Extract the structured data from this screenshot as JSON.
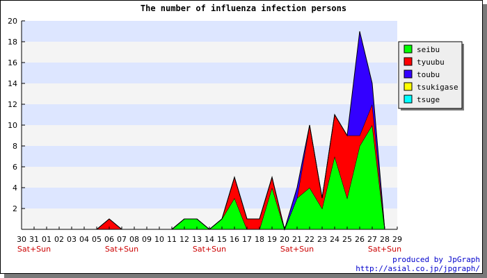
{
  "chart_data": {
    "type": "area",
    "stacked": true,
    "title": "The number of influenza infection persons",
    "xlabel": "",
    "ylabel": "",
    "ylim": [
      0,
      20
    ],
    "yticks": [
      2,
      4,
      6,
      8,
      10,
      12,
      14,
      16,
      18,
      20
    ],
    "grid": true,
    "legend_position": "right",
    "categories": [
      "30",
      "31",
      "01",
      "02",
      "03",
      "04",
      "05",
      "06",
      "07",
      "08",
      "09",
      "10",
      "11",
      "12",
      "13",
      "14",
      "15",
      "16",
      "17",
      "18",
      "19",
      "20",
      "21",
      "22",
      "23",
      "24",
      "25",
      "26",
      "27",
      "28",
      "29"
    ],
    "weekend_markers": [
      {
        "index": 1,
        "label": "Sat+Sun"
      },
      {
        "index": 8,
        "label": "Sat+Sun"
      },
      {
        "index": 15,
        "label": "Sat+Sun"
      },
      {
        "index": 22,
        "label": "Sat+Sun"
      },
      {
        "index": 29,
        "label": "Sat+Sun"
      }
    ],
    "series": [
      {
        "name": "seibu",
        "color": "#00ff00",
        "values": [
          0,
          0,
          0,
          0,
          0,
          0,
          0,
          0,
          0,
          0,
          0,
          0,
          0,
          1,
          1,
          0,
          1,
          3,
          0,
          0,
          4,
          0,
          3,
          4,
          2,
          7,
          3,
          8,
          10,
          0,
          0
        ]
      },
      {
        "name": "tyuubu",
        "color": "#ff0000",
        "values": [
          0,
          0,
          0,
          0,
          0,
          0,
          0,
          1,
          0,
          0,
          0,
          0,
          0,
          0,
          0,
          0,
          0,
          2,
          1,
          1,
          1,
          0,
          0,
          6,
          1,
          4,
          6,
          1,
          2,
          0,
          0
        ]
      },
      {
        "name": "toubu",
        "color": "#3300ff",
        "values": [
          0,
          0,
          0,
          0,
          0,
          0,
          0,
          0,
          0,
          0,
          0,
          0,
          0,
          0,
          0,
          0,
          0,
          0,
          0,
          0,
          0,
          0,
          1,
          0,
          0,
          0,
          0,
          10,
          2,
          0,
          0
        ]
      },
      {
        "name": "tsukigase",
        "color": "#ffff00",
        "values": [
          0,
          0,
          0,
          0,
          0,
          0,
          0,
          0,
          0,
          0,
          0,
          0,
          0,
          0,
          0,
          0,
          0,
          0,
          0,
          0,
          0,
          0,
          0,
          0,
          0,
          0,
          0,
          0,
          0,
          0,
          0
        ]
      },
      {
        "name": "tsuge",
        "color": "#00ffff",
        "values": [
          0,
          0,
          0,
          0,
          0,
          0,
          0,
          0,
          0,
          0,
          0,
          0,
          0,
          0,
          0,
          0,
          0,
          0,
          0,
          0,
          0,
          0,
          0,
          0,
          0,
          0,
          0,
          0,
          0,
          0,
          0
        ]
      }
    ],
    "background_bands": [
      "#dde6ff",
      "#f4f4f4"
    ],
    "tick_marker_color": "#cc0000"
  },
  "credit": {
    "line1": "produced by JpGraph",
    "line2": "http://asial.co.jp/jpgraph/"
  }
}
